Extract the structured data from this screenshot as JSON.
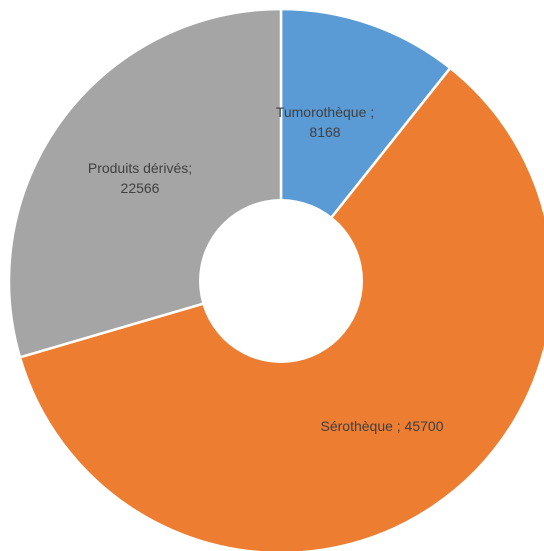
{
  "chart_data": {
    "type": "pie",
    "variant": "doughnut",
    "title": "",
    "categories": [
      "Tumorothèque",
      "Sérothèque",
      "Produits dérivés"
    ],
    "values": [
      8168,
      45700,
      22566
    ],
    "colors": [
      "#5b9bd5",
      "#ed7d31",
      "#a5a5a5"
    ],
    "labels": [
      {
        "line1": "Tumorothèque ;",
        "line2": "8168"
      },
      {
        "line1": "Sérothèque ; 45700",
        "line2": ""
      },
      {
        "line1": "Produits dérivés;",
        "line2": "22566"
      }
    ],
    "legend": "none",
    "start_angle_deg": 0,
    "direction": "clockwise"
  }
}
